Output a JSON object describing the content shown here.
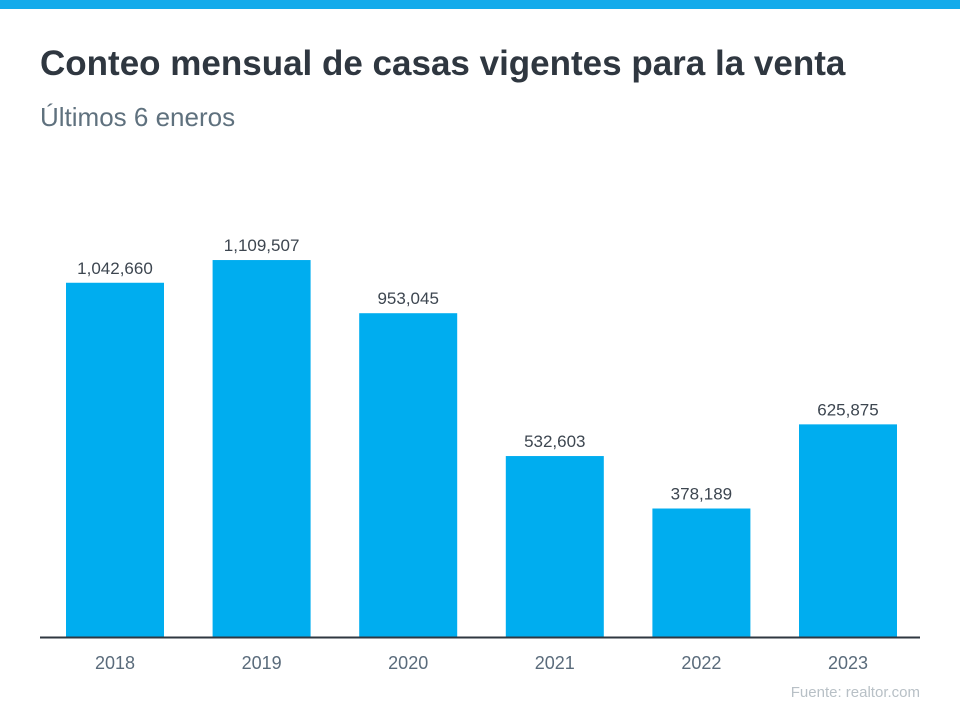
{
  "colors": {
    "accent": "#14abeb",
    "bar": "#00adef",
    "axis": "#2f3740",
    "label": "#5a6b7b",
    "title": "#2f3740"
  },
  "source": "Fuente:  realtor.com",
  "chart_data": {
    "type": "bar",
    "title": "Conteo mensual de casas vigentes para la venta",
    "subtitle": "Últimos 6 eneros",
    "categories": [
      "2018",
      "2019",
      "2020",
      "2021",
      "2022",
      "2023"
    ],
    "values": [
      1042660,
      1109507,
      953045,
      532603,
      378189,
      625875
    ],
    "data_labels": [
      "1,042,660",
      "1,109,507",
      "953,045",
      "532,603",
      "378,189",
      "625,875"
    ],
    "xlabel": "",
    "ylabel": "",
    "ylim": [
      0,
      1200000
    ],
    "grid": false,
    "legend": "none"
  }
}
